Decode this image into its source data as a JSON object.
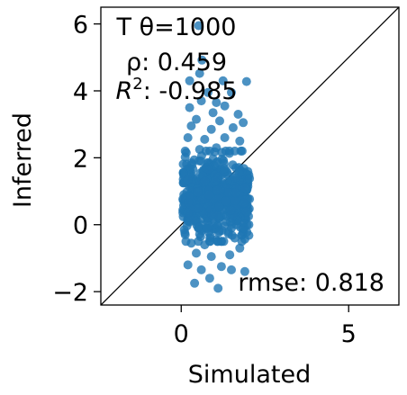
{
  "chart_data": {
    "type": "scatter",
    "xlabel": "Simulated",
    "ylabel": "Inferred",
    "xlim": [
      -2.4,
      6.5
    ],
    "ylim": [
      -2.4,
      6.5
    ],
    "x_ticks": [
      0,
      5
    ],
    "x_tick_labels": [
      "0",
      "5"
    ],
    "y_ticks": [
      -2,
      0,
      2,
      4,
      6
    ],
    "y_tick_labels": [
      "−2",
      "0",
      "2",
      "4",
      "6"
    ],
    "grid": false,
    "identity_line": true,
    "point_color": "#1f77b4",
    "annotations": {
      "title_line": "T θ=1000",
      "rho": "ρ: 0.459",
      "r2_symbol": "R",
      "r2_exp": "2",
      "r2_value": ": -0.985",
      "rmse": "rmse: 0.818"
    },
    "points": [
      [
        0.52,
        5.95
      ],
      [
        0.62,
        4.92
      ],
      [
        0.55,
        4.52
      ],
      [
        0.25,
        4.3
      ],
      [
        1.25,
        4.3
      ],
      [
        1.95,
        4.28
      ],
      [
        0.8,
        3.95
      ],
      [
        1.5,
        3.95
      ],
      [
        0.6,
        3.7
      ],
      [
        1.05,
        3.65
      ],
      [
        1.3,
        3.55
      ],
      [
        0.25,
        3.5
      ],
      [
        0.95,
        3.35
      ],
      [
        1.7,
        3.3
      ],
      [
        0.45,
        3.15
      ],
      [
        1.15,
        3.1
      ],
      [
        1.85,
        3.05
      ],
      [
        0.3,
        2.95
      ],
      [
        0.9,
        2.85
      ],
      [
        1.55,
        2.9
      ],
      [
        0.2,
        2.6
      ],
      [
        0.7,
        2.55
      ],
      [
        1.3,
        2.6
      ],
      [
        1.75,
        2.5
      ],
      [
        0.55,
        2.25
      ],
      [
        1.05,
        2.3
      ],
      [
        1.6,
        2.2
      ],
      [
        0.15,
        2.15
      ],
      [
        0.4,
        -1.75
      ],
      [
        0.85,
        -1.6
      ],
      [
        1.1,
        -1.9
      ],
      [
        1.5,
        -1.35
      ],
      [
        0.6,
        -1.35
      ],
      [
        1.9,
        -1.4
      ],
      [
        0.2,
        -1.2
      ],
      [
        1.2,
        -1.25
      ],
      [
        0.45,
        -0.85
      ],
      [
        1.45,
        -0.9
      ],
      [
        0.9,
        -0.95
      ],
      [
        1.75,
        -0.7
      ],
      [
        0.3,
        -0.55
      ],
      [
        1.05,
        -0.45
      ],
      [
        1.6,
        -0.4
      ],
      [
        0.12,
        -0.3
      ],
      [
        0.7,
        -0.6
      ]
    ],
    "cloud": {
      "count": 620,
      "x_range": [
        0.05,
        2.05
      ],
      "y_mean": 0.8,
      "y_sd": 0.6,
      "y_range": [
        -0.5,
        2.2
      ]
    }
  }
}
